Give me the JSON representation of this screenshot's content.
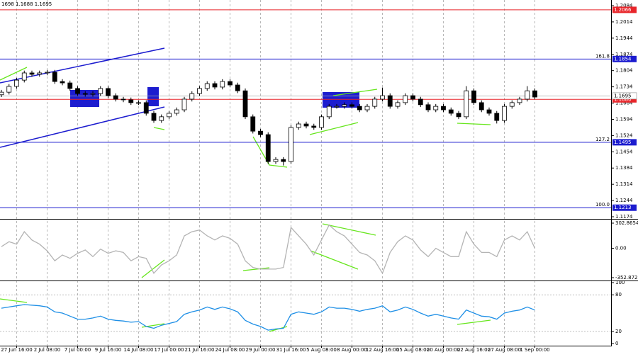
{
  "chart_data": [
    {
      "type": "candlestick",
      "title": "1698 1.1688 1.1695",
      "open": [
        1.17,
        1.1711,
        1.1736,
        1.1763,
        1.1794,
        1.1788,
        1.1794,
        1.1797,
        1.1757,
        1.1751,
        1.1727,
        1.1705,
        1.1702,
        1.1705,
        1.1727,
        1.1696,
        1.1681,
        1.1678,
        1.1666,
        1.1666,
        1.162,
        1.1589,
        1.1605,
        1.162,
        1.1635,
        1.1681,
        1.1705,
        1.1727,
        1.1748,
        1.1733,
        1.1757,
        1.1742,
        1.1717,
        1.1605,
        1.1543,
        1.1528,
        1.1412,
        1.1421,
        1.1412,
        1.1559,
        1.1574,
        1.1565,
        1.1559,
        1.1605,
        1.165,
        1.165,
        1.1657,
        1.165,
        1.1635,
        1.165,
        1.1681,
        1.1696,
        1.165,
        1.1666,
        1.1696,
        1.1681,
        1.1657,
        1.1635,
        1.165,
        1.1635,
        1.162,
        1.1605,
        1.1717,
        1.1666,
        1.1635,
        1.162,
        1.1589,
        1.165,
        1.1666,
        1.1681,
        1.1717
      ],
      "high": [
        1.1721,
        1.1746,
        1.1773,
        1.1804,
        1.1804,
        1.1804,
        1.1807,
        1.1807,
        1.1767,
        1.1761,
        1.1737,
        1.1715,
        1.1715,
        1.1737,
        1.1737,
        1.1706,
        1.1691,
        1.1688,
        1.1676,
        1.1676,
        1.163,
        1.1615,
        1.163,
        1.1645,
        1.1691,
        1.1715,
        1.1737,
        1.1758,
        1.1758,
        1.1767,
        1.1767,
        1.1752,
        1.1727,
        1.1615,
        1.1553,
        1.1538,
        1.1431,
        1.1431,
        1.1569,
        1.1584,
        1.1584,
        1.1575,
        1.1615,
        1.166,
        1.166,
        1.1667,
        1.1667,
        1.166,
        1.166,
        1.1691,
        1.1731,
        1.1706,
        1.1676,
        1.1706,
        1.1706,
        1.1691,
        1.1667,
        1.166,
        1.166,
        1.1645,
        1.163,
        1.1737,
        1.1727,
        1.1676,
        1.1645,
        1.163,
        1.166,
        1.1676,
        1.1691,
        1.1737,
        1.1727
      ],
      "low": [
        1.169,
        1.1701,
        1.1726,
        1.1753,
        1.1778,
        1.1778,
        1.1784,
        1.1747,
        1.1741,
        1.1717,
        1.1695,
        1.1692,
        1.1692,
        1.1695,
        1.1686,
        1.1671,
        1.1668,
        1.1656,
        1.1656,
        1.161,
        1.1579,
        1.1579,
        1.1595,
        1.161,
        1.1625,
        1.1671,
        1.1695,
        1.1717,
        1.1723,
        1.1723,
        1.1732,
        1.1707,
        1.1595,
        1.1533,
        1.1518,
        1.1402,
        1.1402,
        1.1395,
        1.1402,
        1.1549,
        1.1555,
        1.1549,
        1.1549,
        1.1595,
        1.164,
        1.164,
        1.164,
        1.1625,
        1.1625,
        1.164,
        1.1671,
        1.164,
        1.164,
        1.1656,
        1.1671,
        1.1647,
        1.1625,
        1.1625,
        1.1625,
        1.161,
        1.1595,
        1.1595,
        1.1656,
        1.1625,
        1.161,
        1.1576,
        1.1579,
        1.164,
        1.1656,
        1.1671,
        1.168
      ],
      "close": [
        1.1711,
        1.1736,
        1.1763,
        1.1794,
        1.1788,
        1.1794,
        1.1797,
        1.1757,
        1.1751,
        1.1727,
        1.1705,
        1.1702,
        1.1705,
        1.1727,
        1.1696,
        1.1681,
        1.1678,
        1.1666,
        1.1666,
        1.162,
        1.1589,
        1.1605,
        1.162,
        1.1635,
        1.1681,
        1.1705,
        1.1727,
        1.1748,
        1.1733,
        1.1757,
        1.1742,
        1.1717,
        1.1605,
        1.1543,
        1.1528,
        1.1412,
        1.1421,
        1.1412,
        1.1559,
        1.1574,
        1.1565,
        1.1559,
        1.1605,
        1.165,
        1.165,
        1.1657,
        1.165,
        1.1635,
        1.165,
        1.1681,
        1.1696,
        1.165,
        1.1666,
        1.1696,
        1.1681,
        1.1657,
        1.1635,
        1.165,
        1.1635,
        1.162,
        1.1605,
        1.1717,
        1.1666,
        1.1635,
        1.162,
        1.1589,
        1.165,
        1.1666,
        1.1681,
        1.1717,
        1.169
      ],
      "xlim": [
        0,
        80
      ],
      "xticks": [
        {
          "value": 2,
          "label": "27 Jun 16:00"
        },
        {
          "value": 6,
          "label": "2 Jul 08:00"
        },
        {
          "value": 10,
          "label": "7 Jul 00:00"
        },
        {
          "value": 14,
          "label": "9 Jul 16:00"
        },
        {
          "value": 18,
          "label": "14 Jul 08:00"
        },
        {
          "value": 22,
          "label": "17 Jul 00:00"
        },
        {
          "value": 26,
          "label": "21 Jul 16:00"
        },
        {
          "value": 30,
          "label": "24 Jul 08:00"
        },
        {
          "value": 34,
          "label": "29 Jul 00:00"
        },
        {
          "value": 38,
          "label": "31 Jul 16:00"
        },
        {
          "value": 42,
          "label": "5 Aug 08:00"
        },
        {
          "value": 46,
          "label": "8 Aug 00:00"
        },
        {
          "value": 50,
          "label": "12 Aug 16:00"
        },
        {
          "value": 54,
          "label": "15 Aug 08:00"
        },
        {
          "value": 58,
          "label": "20 Aug 00:00"
        },
        {
          "value": 62,
          "label": "22 Aug 16:00"
        },
        {
          "value": 66,
          "label": "27 Aug 08:00"
        },
        {
          "value": 70,
          "label": "1 Sep 00:00"
        }
      ],
      "ylim": [
        1.1174,
        1.2084
      ],
      "yticks": [
        1.2084,
        1.2014,
        1.1944,
        1.1874,
        1.1804,
        1.1734,
        1.1664,
        1.1594,
        1.1524,
        1.1454,
        1.1384,
        1.1314,
        1.1244,
        1.1174
      ],
      "hlines": [
        {
          "value": 1.2066,
          "color": "#e8252a"
        },
        {
          "value": 1.1854,
          "color": "#1c1ccf",
          "level": "161.8"
        },
        {
          "value": 1.1495,
          "color": "#1c1ccf",
          "level": "127.2"
        },
        {
          "value": 1.1213,
          "color": "#1c1ccf",
          "level": "100.0"
        },
        {
          "value": 1.168,
          "label": "1.1680",
          "color": "#e8252a"
        }
      ],
      "bid": 1.1695
    },
    {
      "type": "line",
      "color": "#b4b4b4",
      "values": [
        20,
        80,
        50,
        200,
        100,
        50,
        -30,
        -150,
        -80,
        -120,
        -60,
        -20,
        -100,
        -10,
        -60,
        -30,
        -50,
        -150,
        -100,
        -120,
        -300,
        -200,
        -150,
        -80,
        150,
        200,
        220,
        150,
        100,
        150,
        120,
        50,
        -150,
        -230,
        -250,
        -250,
        -250,
        -230,
        250,
        150,
        50,
        -80,
        100,
        280,
        200,
        150,
        50,
        -50,
        -80,
        -150,
        -300,
        -50,
        80,
        150,
        100,
        -20,
        -100,
        0,
        -50,
        -100,
        -100,
        200,
        50,
        -50,
        -50,
        -100,
        100,
        150,
        100,
        200,
        0
      ],
      "ylim": [
        -352.872,
        302.8654
      ],
      "yticks": [
        302.8654,
        {
          "value": 0,
          "label": "0.00"
        },
        -352.872
      ]
    },
    {
      "type": "line",
      "color": "#1e8fe6",
      "values": [
        58,
        60,
        62,
        64,
        63,
        62,
        60,
        52,
        50,
        45,
        40,
        40,
        42,
        45,
        40,
        38,
        37,
        35,
        36,
        28,
        25,
        30,
        33,
        36,
        48,
        52,
        55,
        60,
        56,
        60,
        57,
        52,
        38,
        32,
        28,
        22,
        24,
        25,
        48,
        52,
        50,
        48,
        52,
        60,
        58,
        58,
        56,
        53,
        56,
        58,
        62,
        52,
        55,
        60,
        56,
        50,
        45,
        48,
        45,
        42,
        40,
        55,
        50,
        45,
        44,
        40,
        50,
        53,
        55,
        60,
        55
      ],
      "ylim": [
        0,
        100
      ],
      "yticks": [
        100,
        80,
        20,
        0
      ],
      "levels": [
        80,
        20
      ]
    }
  ]
}
